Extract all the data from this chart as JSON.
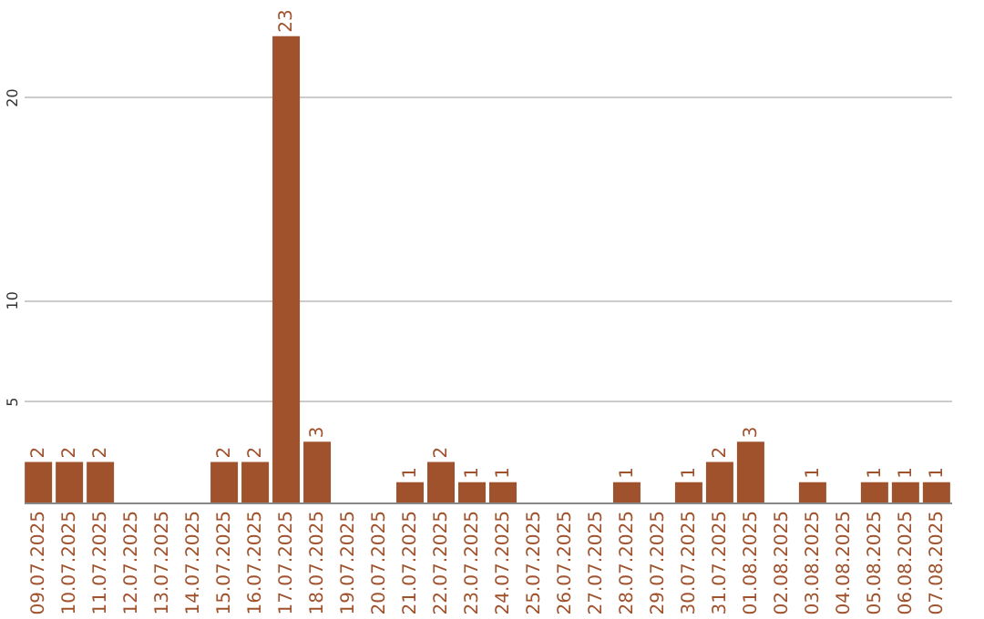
{
  "chart_data": {
    "type": "bar",
    "categories": [
      "09.07.2025",
      "10.07.2025",
      "11.07.2025",
      "12.07.2025",
      "13.07.2025",
      "14.07.2025",
      "15.07.2025",
      "16.07.2025",
      "17.07.2025",
      "18.07.2025",
      "19.07.2025",
      "20.07.2025",
      "21.07.2025",
      "22.07.2025",
      "23.07.2025",
      "24.07.2025",
      "25.07.2025",
      "26.07.2025",
      "27.07.2025",
      "28.07.2025",
      "29.07.2025",
      "30.07.2025",
      "31.07.2025",
      "01.08.2025",
      "02.08.2025",
      "03.08.2025",
      "04.08.2025",
      "05.08.2025",
      "06.08.2025",
      "07.08.2025"
    ],
    "values": [
      2,
      2,
      2,
      0,
      0,
      0,
      2,
      2,
      23,
      3,
      0,
      0,
      1,
      2,
      1,
      1,
      0,
      0,
      0,
      1,
      0,
      1,
      2,
      3,
      0,
      1,
      0,
      1,
      1,
      1
    ],
    "value_labels": [
      "2",
      "2",
      "2",
      null,
      null,
      null,
      "2",
      "2",
      "23",
      "3",
      null,
      null,
      "1",
      "2",
      "1",
      "1",
      null,
      null,
      null,
      "1",
      null,
      "1",
      "2",
      "3",
      null,
      "1",
      null,
      "1",
      "1",
      "1"
    ],
    "color": "#a0522d",
    "ylim": [
      0,
      24.6
    ],
    "yticks": [
      5,
      10,
      20
    ],
    "grid": "y"
  }
}
